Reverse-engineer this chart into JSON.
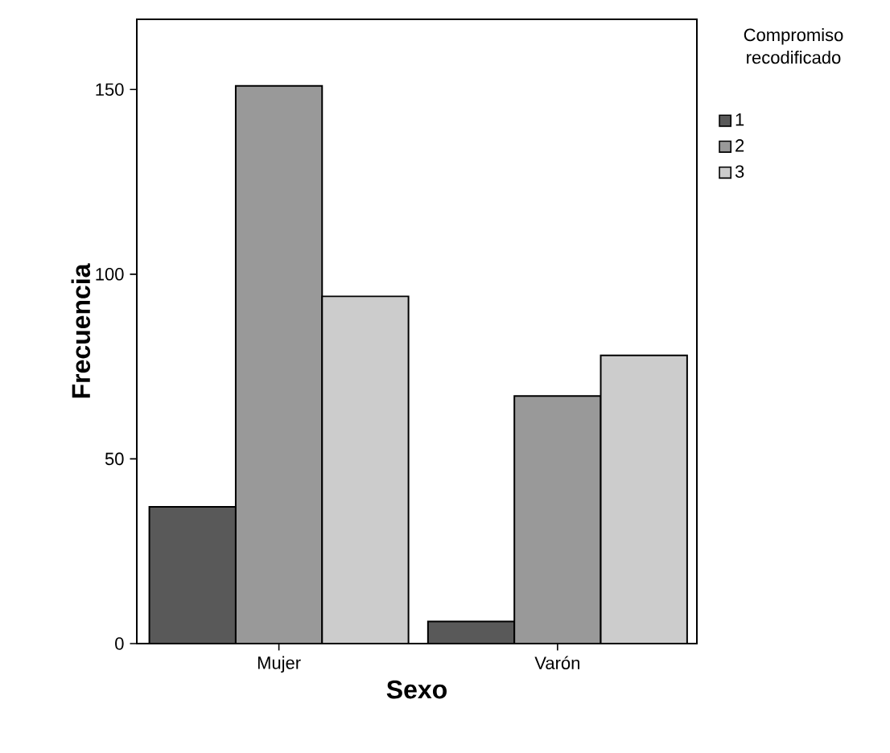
{
  "chart_data": {
    "type": "bar",
    "xlabel": "Sexo",
    "ylabel": "Frecuencia",
    "legend_title": "Compromiso recodificado",
    "categories": [
      "Mujer",
      "Varón"
    ],
    "series": [
      {
        "name": "1",
        "color": "#595959",
        "values": [
          37,
          6
        ]
      },
      {
        "name": "2",
        "color": "#999999",
        "values": [
          151,
          67
        ]
      },
      {
        "name": "3",
        "color": "#cccccc",
        "values": [
          94,
          78
        ]
      }
    ],
    "ylim": [
      0,
      169
    ],
    "yticks": [
      0,
      50,
      100,
      150
    ],
    "grid": false,
    "legend": "top right"
  }
}
